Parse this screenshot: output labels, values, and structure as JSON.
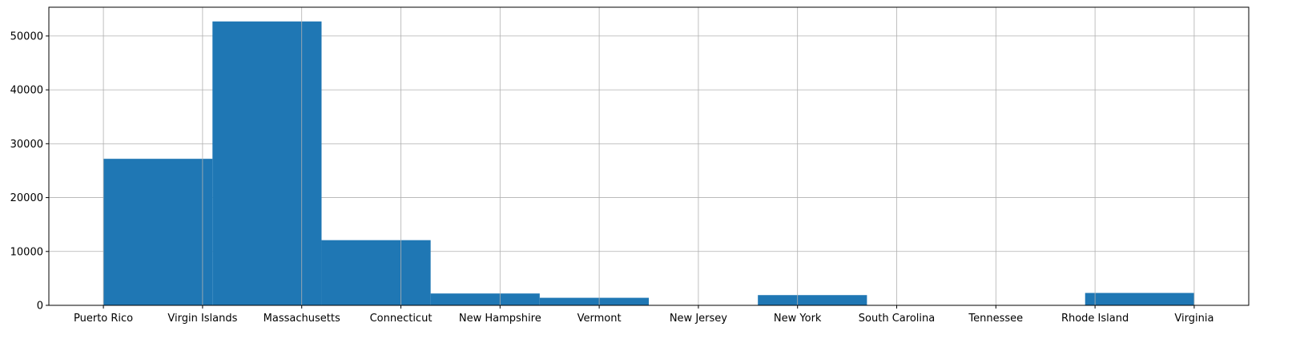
{
  "chart_data": {
    "type": "bar",
    "subtype": "histogram",
    "title": "",
    "xlabel": "",
    "ylabel": "",
    "x_ticks": [
      "Puerto Rico",
      "Virgin Islands",
      "Massachusetts",
      "Connecticut",
      "New Hampshire",
      "Vermont",
      "New Jersey",
      "New York",
      "South Carolina",
      "Tennessee",
      "Rhode Island",
      "Virginia"
    ],
    "x_range": [
      -0.55,
      11.55
    ],
    "bins": [
      {
        "start": 0.0,
        "end": 1.1,
        "value": 27200
      },
      {
        "start": 1.1,
        "end": 2.2,
        "value": 52700
      },
      {
        "start": 2.2,
        "end": 3.3,
        "value": 12100
      },
      {
        "start": 3.3,
        "end": 4.4,
        "value": 2200
      },
      {
        "start": 4.4,
        "end": 5.5,
        "value": 1400
      },
      {
        "start": 5.5,
        "end": 6.6,
        "value": 0
      },
      {
        "start": 6.6,
        "end": 7.7,
        "value": 1900
      },
      {
        "start": 7.7,
        "end": 8.8,
        "value": 0
      },
      {
        "start": 8.8,
        "end": 9.9,
        "value": 0
      },
      {
        "start": 9.9,
        "end": 11.0,
        "value": 2300
      }
    ],
    "y_ticks": [
      0,
      10000,
      20000,
      30000,
      40000,
      50000
    ],
    "ylim": [
      0,
      55340
    ],
    "bar_color": "#1f77b4",
    "grid": true,
    "legend": "none"
  }
}
